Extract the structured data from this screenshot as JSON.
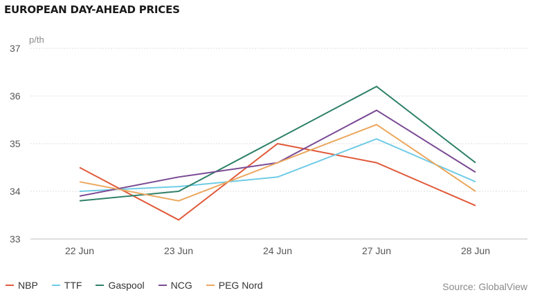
{
  "title": "EUROPEAN DAY-AHEAD PRICES",
  "source": "Source: GlobalView",
  "chart_data": {
    "type": "line",
    "title": "EUROPEAN DAY-AHEAD PRICES",
    "ylabel": "p/th",
    "xlabel": "",
    "categories": [
      "22 Jun",
      "23 Jun",
      "24 Jun",
      "27 Jun",
      "28 Jun"
    ],
    "ylim": [
      33,
      37
    ],
    "yticks": [
      33,
      34,
      35,
      36,
      37
    ],
    "grid": true,
    "legend_position": "bottom-left",
    "series": [
      {
        "name": "NBP",
        "color": "#e05a3a",
        "values": [
          34.5,
          33.4,
          35.0,
          34.6,
          33.7
        ]
      },
      {
        "name": "TTF",
        "color": "#6fcbe6",
        "values": [
          34.0,
          34.1,
          34.3,
          35.1,
          34.2
        ]
      },
      {
        "name": "Gaspool",
        "color": "#2e8068",
        "values": [
          33.8,
          34.0,
          35.1,
          36.2,
          34.6
        ]
      },
      {
        "name": "NCG",
        "color": "#7a4a94",
        "values": [
          33.9,
          34.3,
          34.6,
          35.7,
          34.4
        ]
      },
      {
        "name": "PEG Nord",
        "color": "#eba75e",
        "values": [
          34.2,
          33.8,
          34.6,
          35.4,
          34.0
        ]
      }
    ]
  }
}
